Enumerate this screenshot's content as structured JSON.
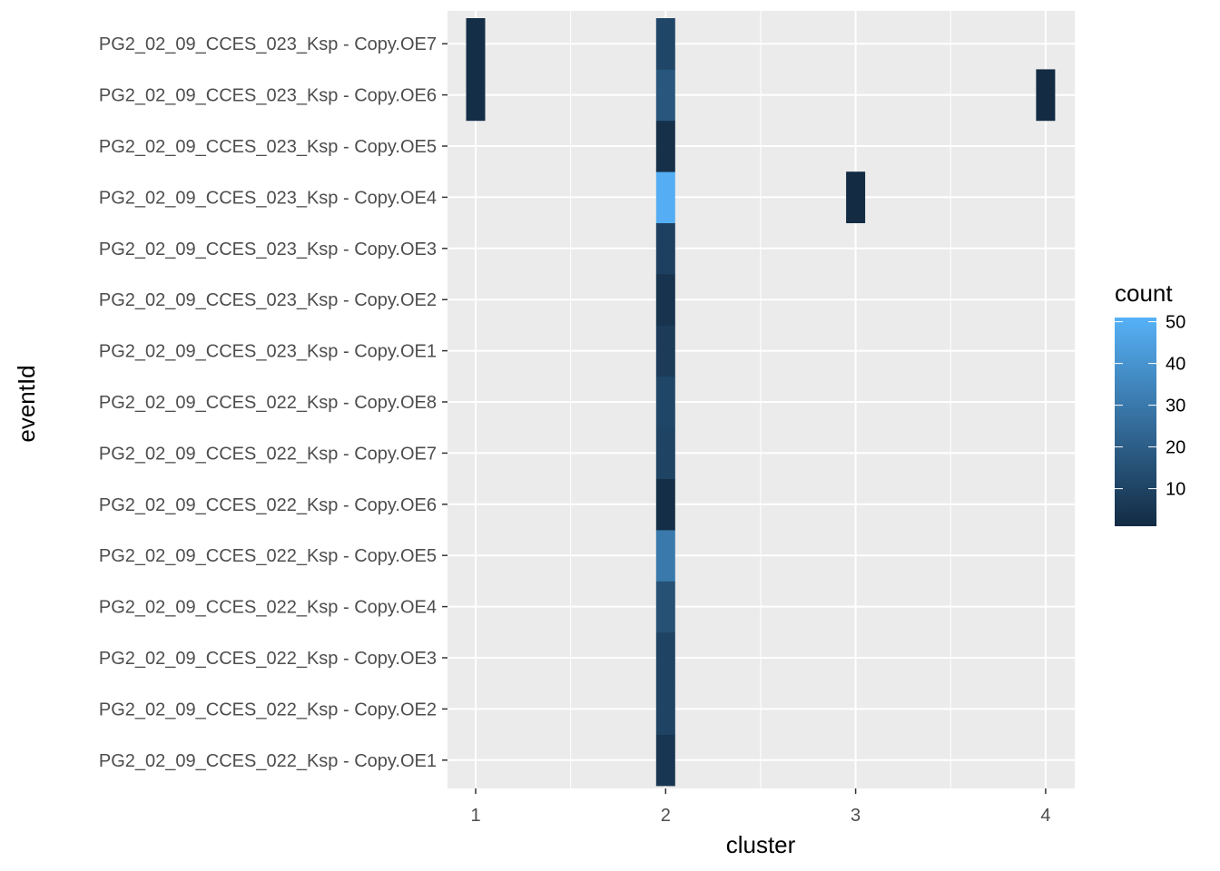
{
  "chart_data": {
    "type": "heatmap",
    "xlabel": "cluster",
    "ylabel": "eventId",
    "x_ticks": [
      "1",
      "2",
      "3",
      "4"
    ],
    "xlim": [
      0.65,
      4.15
    ],
    "grid": true,
    "categories": [
      "PG2_02_09_CCES_022_Ksp - Copy.OE1",
      "PG2_02_09_CCES_022_Ksp - Copy.OE2",
      "PG2_02_09_CCES_022_Ksp - Copy.OE3",
      "PG2_02_09_CCES_022_Ksp - Copy.OE4",
      "PG2_02_09_CCES_022_Ksp - Copy.OE5",
      "PG2_02_09_CCES_022_Ksp - Copy.OE6",
      "PG2_02_09_CCES_022_Ksp - Copy.OE7",
      "PG2_02_09_CCES_022_Ksp - Copy.OE8",
      "PG2_02_09_CCES_023_Ksp - Copy.OE1",
      "PG2_02_09_CCES_023_Ksp - Copy.OE2",
      "PG2_02_09_CCES_023_Ksp - Copy.OE3",
      "PG2_02_09_CCES_023_Ksp - Copy.OE4",
      "PG2_02_09_CCES_023_Ksp - Copy.OE5",
      "PG2_02_09_CCES_023_Ksp - Copy.OE6",
      "PG2_02_09_CCES_023_Ksp - Copy.OE7"
    ],
    "cells": [
      {
        "event": "PG2_02_09_CCES_022_Ksp - Copy.OE1",
        "cluster": 2,
        "count": 5
      },
      {
        "event": "PG2_02_09_CCES_022_Ksp - Copy.OE2",
        "cluster": 2,
        "count": 10
      },
      {
        "event": "PG2_02_09_CCES_022_Ksp - Copy.OE3",
        "cluster": 2,
        "count": 10
      },
      {
        "event": "PG2_02_09_CCES_022_Ksp - Copy.OE4",
        "cluster": 2,
        "count": 15
      },
      {
        "event": "PG2_02_09_CCES_022_Ksp - Copy.OE5",
        "cluster": 2,
        "count": 30
      },
      {
        "event": "PG2_02_09_CCES_022_Ksp - Copy.OE6",
        "cluster": 2,
        "count": 2
      },
      {
        "event": "PG2_02_09_CCES_022_Ksp - Copy.OE7",
        "cluster": 2,
        "count": 10
      },
      {
        "event": "PG2_02_09_CCES_022_Ksp - Copy.OE8",
        "cluster": 2,
        "count": 11
      },
      {
        "event": "PG2_02_09_CCES_023_Ksp - Copy.OE1",
        "cluster": 2,
        "count": 7
      },
      {
        "event": "PG2_02_09_CCES_023_Ksp - Copy.OE2",
        "cluster": 2,
        "count": 4
      },
      {
        "event": "PG2_02_09_CCES_023_Ksp - Copy.OE3",
        "cluster": 2,
        "count": 9
      },
      {
        "event": "PG2_02_09_CCES_023_Ksp - Copy.OE4",
        "cluster": 2,
        "count": 50
      },
      {
        "event": "PG2_02_09_CCES_023_Ksp - Copy.OE5",
        "cluster": 2,
        "count": 3
      },
      {
        "event": "PG2_02_09_CCES_023_Ksp - Copy.OE6",
        "cluster": 2,
        "count": 17
      },
      {
        "event": "PG2_02_09_CCES_023_Ksp - Copy.OE7",
        "cluster": 2,
        "count": 11
      },
      {
        "event": "PG2_02_09_CCES_023_Ksp - Copy.OE6",
        "cluster": 1,
        "count": 2
      },
      {
        "event": "PG2_02_09_CCES_023_Ksp - Copy.OE7",
        "cluster": 1,
        "count": 2
      },
      {
        "event": "PG2_02_09_CCES_023_Ksp - Copy.OE4",
        "cluster": 3,
        "count": 1
      },
      {
        "event": "PG2_02_09_CCES_023_Ksp - Copy.OE6",
        "cluster": 4,
        "count": 1
      }
    ],
    "legend": {
      "title": "count",
      "ticks": [
        10,
        20,
        30,
        40,
        50
      ],
      "tick_labels": [
        "10",
        "20",
        "30",
        "40",
        "50"
      ],
      "range": [
        1,
        51
      ],
      "color_low": "#132b43",
      "color_high": "#56b1f7",
      "placement": "right"
    }
  }
}
